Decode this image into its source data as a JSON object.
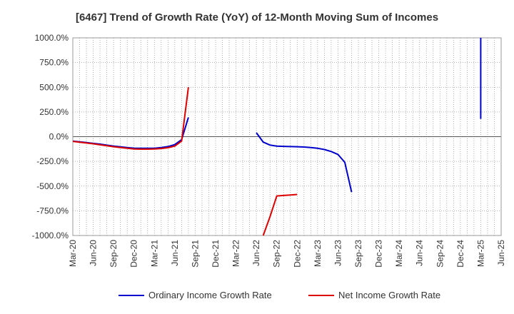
{
  "title": "[6467]  Trend of Growth Rate (YoY) of 12-Month Moving Sum of Incomes",
  "chart_data": {
    "type": "line",
    "title": "[6467]  Trend of Growth Rate (YoY) of 12-Month Moving Sum of Incomes",
    "xlabel": "",
    "ylabel": "",
    "ylim": [
      -1000,
      1000
    ],
    "yticks": [
      1000,
      750,
      500,
      250,
      0,
      -250,
      -500,
      -750,
      -1000
    ],
    "ytick_labels": [
      "1000.0%",
      "750.0%",
      "500.0%",
      "250.0%",
      "0.0%",
      "-250.0%",
      "-500.0%",
      "-750.0%",
      "-1000.0%"
    ],
    "xlim": [
      "2020-03",
      "2025-06"
    ],
    "xtick_labels": [
      "Mar-20",
      "Jun-20",
      "Sep-20",
      "Dec-20",
      "Mar-21",
      "Jun-21",
      "Sep-21",
      "Dec-21",
      "Mar-22",
      "Jun-22",
      "Sep-22",
      "Dec-22",
      "Mar-23",
      "Jun-23",
      "Sep-23",
      "Dec-23",
      "Mar-24",
      "Jun-24",
      "Sep-24",
      "Dec-24",
      "Mar-25",
      "Jun-25"
    ],
    "grid": true,
    "legend_position": "bottom",
    "series": [
      {
        "name": "Ordinary Income Growth Rate",
        "color": "#0000cc",
        "points": [
          [
            "2020-03",
            -45
          ],
          [
            "2020-04",
            -52
          ],
          [
            "2020-05",
            -60
          ],
          [
            "2020-06",
            -68
          ],
          [
            "2020-07",
            -76
          ],
          [
            "2020-08",
            -86
          ],
          [
            "2020-09",
            -96
          ],
          [
            "2020-10",
            -103
          ],
          [
            "2020-11",
            -110
          ],
          [
            "2020-12",
            -116
          ],
          [
            "2021-01",
            -118
          ],
          [
            "2021-02",
            -118
          ],
          [
            "2021-03",
            -117
          ],
          [
            "2021-04",
            -110
          ],
          [
            "2021-05",
            -100
          ],
          [
            "2021-06",
            -80
          ],
          [
            "2021-07",
            -30
          ],
          [
            "2021-08",
            195
          ],
          null,
          [
            "2022-06",
            40
          ],
          [
            "2022-07",
            -55
          ],
          [
            "2022-08",
            -85
          ],
          [
            "2022-09",
            -95
          ],
          [
            "2022-10",
            -98
          ],
          [
            "2022-11",
            -100
          ],
          [
            "2022-12",
            -102
          ],
          [
            "2023-01",
            -105
          ],
          [
            "2023-02",
            -110
          ],
          [
            "2023-03",
            -118
          ],
          [
            "2023-04",
            -130
          ],
          [
            "2023-05",
            -150
          ],
          [
            "2023-06",
            -180
          ],
          [
            "2023-07",
            -260
          ],
          [
            "2023-08",
            -560
          ],
          null,
          [
            "2025-03",
            1000
          ],
          [
            "2025-03",
            180
          ]
        ]
      },
      {
        "name": "Net Income Growth Rate",
        "color": "#dd0000",
        "points": [
          [
            "2020-03",
            -48
          ],
          [
            "2020-04",
            -56
          ],
          [
            "2020-05",
            -64
          ],
          [
            "2020-06",
            -72
          ],
          [
            "2020-07",
            -82
          ],
          [
            "2020-08",
            -92
          ],
          [
            "2020-09",
            -102
          ],
          [
            "2020-10",
            -110
          ],
          [
            "2020-11",
            -118
          ],
          [
            "2020-12",
            -124
          ],
          [
            "2021-01",
            -126
          ],
          [
            "2021-02",
            -126
          ],
          [
            "2021-03",
            -125
          ],
          [
            "2021-04",
            -120
          ],
          [
            "2021-05",
            -112
          ],
          [
            "2021-06",
            -95
          ],
          [
            "2021-07",
            -45
          ],
          [
            "2021-08",
            500
          ],
          null,
          [
            "2022-07",
            -1000
          ],
          [
            "2022-08",
            -810
          ],
          [
            "2022-09",
            -600
          ],
          [
            "2022-10",
            -595
          ],
          [
            "2022-11",
            -590
          ],
          [
            "2022-12",
            -585
          ]
        ]
      }
    ]
  }
}
